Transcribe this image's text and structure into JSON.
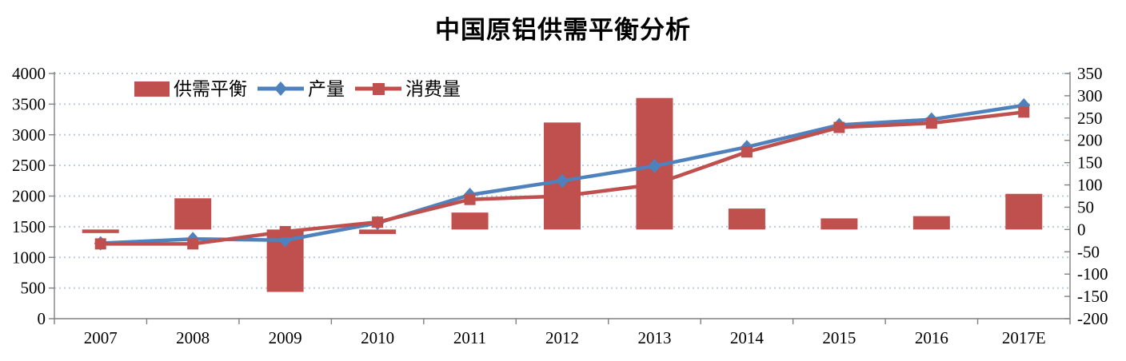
{
  "title": "中国原铝供需平衡分析",
  "legend": [
    {
      "label": "供需平衡",
      "swatch": "bar",
      "color": "#C0504D"
    },
    {
      "label": "产量",
      "swatch": "line-diamond",
      "color": "#4F81BD"
    },
    {
      "label": "消费量",
      "swatch": "line-square",
      "color": "#C0504D"
    }
  ],
  "colors": {
    "bar_red": "#C0504D",
    "line_blue": "#4F81BD",
    "line_red": "#C0504D",
    "gridline": "#B8CCE4",
    "axis": "#808080",
    "text": "#000000"
  },
  "chart_data": {
    "type": "combo bar+line",
    "title": "中国原铝供需平衡分析",
    "categories": [
      "2007",
      "2008",
      "2009",
      "2010",
      "2011",
      "2012",
      "2013",
      "2014",
      "2015",
      "2016",
      "2017E"
    ],
    "series": [
      {
        "name": "供需平衡",
        "type": "bar",
        "axis": "right",
        "color": "#C0504D",
        "values": [
          -8,
          70,
          -140,
          -10,
          38,
          240,
          295,
          47,
          25,
          30,
          80
        ]
      },
      {
        "name": "产量",
        "type": "line",
        "marker": "diamond",
        "axis": "left",
        "color": "#4F81BD",
        "values": [
          1230,
          1300,
          1280,
          1560,
          2020,
          2250,
          2490,
          2800,
          3160,
          3250,
          3480
        ]
      },
      {
        "name": "消费量",
        "type": "line",
        "marker": "square",
        "axis": "left",
        "color": "#C0504D",
        "values": [
          1220,
          1220,
          1420,
          1575,
          1945,
          2000,
          2190,
          2720,
          3120,
          3190,
          3370
        ]
      }
    ],
    "left_axis": {
      "min": 0,
      "max": 4000,
      "step": 500,
      "tick_labels": [
        "4000",
        "3500",
        "3000",
        "2500",
        "2000",
        "1500",
        "1000",
        "500",
        "0"
      ]
    },
    "right_axis": {
      "min": -200,
      "max": 350,
      "step": 50,
      "tick_labels": [
        "350",
        "300",
        "250",
        "200",
        "150",
        "100",
        "50",
        "0",
        "-50",
        "-100",
        "-150",
        "-200"
      ]
    },
    "grid": {
      "horizontal": true,
      "style": "dotted",
      "color": "#B8CCE4"
    },
    "legend_position": "top-left-inside"
  }
}
